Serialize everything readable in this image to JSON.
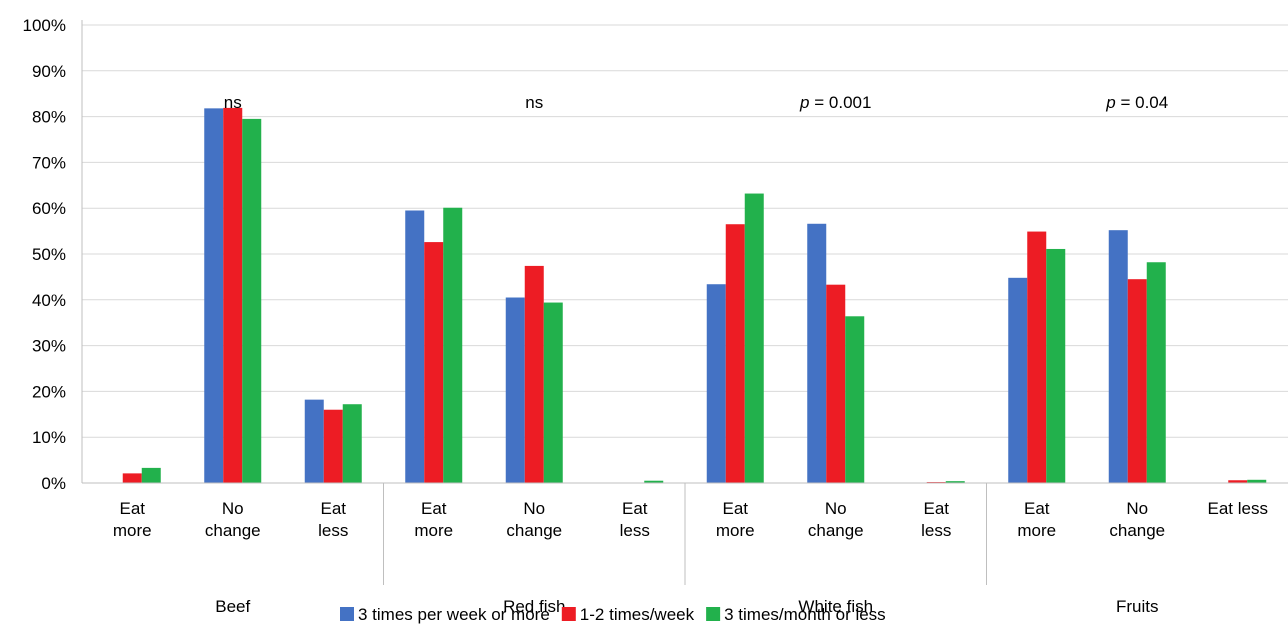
{
  "chart_data": {
    "type": "bar",
    "title": "",
    "xlabel": "",
    "ylabel": "",
    "ylim": [
      0,
      100
    ],
    "yticks": [
      "0%",
      "10%",
      "20%",
      "30%",
      "40%",
      "50%",
      "60%",
      "70%",
      "80%",
      "90%",
      "100%"
    ],
    "grid": true,
    "legend_position": "bottom",
    "groups": [
      {
        "name": "Beef",
        "annotation": "ns",
        "categories": [
          [
            "Eat",
            "more"
          ],
          [
            "No",
            "change"
          ],
          [
            "Eat",
            "less"
          ]
        ]
      },
      {
        "name": "Red fish",
        "annotation": "ns",
        "categories": [
          [
            "Eat",
            "more"
          ],
          [
            "No",
            "change"
          ],
          [
            "Eat",
            "less"
          ]
        ]
      },
      {
        "name": "White fish",
        "annotation": {
          "italic": "p",
          "rest": " = 0.001"
        },
        "categories": [
          [
            "Eat",
            "more"
          ],
          [
            "No",
            "change"
          ],
          [
            "Eat",
            "less"
          ]
        ]
      },
      {
        "name": "Fruits",
        "annotation": {
          "italic": "p",
          "rest": " = 0.04"
        },
        "categories": [
          [
            "Eat",
            "more"
          ],
          [
            "No",
            "change"
          ],
          [
            "Eat less"
          ]
        ]
      }
    ],
    "series": [
      {
        "name": "3 times per week or more",
        "color": "#4472C4",
        "values": [
          0,
          81.8,
          18.2,
          59.5,
          40.5,
          0,
          43.4,
          56.6,
          0,
          44.8,
          55.2,
          0
        ]
      },
      {
        "name": "1-2 times/week",
        "color": "#ED1C24",
        "values": [
          2.1,
          81.9,
          16.0,
          52.6,
          47.4,
          0,
          56.5,
          43.3,
          0.2,
          54.9,
          44.5,
          0.6
        ]
      },
      {
        "name": "3 times/month or less",
        "color": "#22B14C",
        "values": [
          3.3,
          79.5,
          17.2,
          60.1,
          39.4,
          0.5,
          63.2,
          36.4,
          0.4,
          51.1,
          48.2,
          0.7
        ]
      }
    ]
  }
}
